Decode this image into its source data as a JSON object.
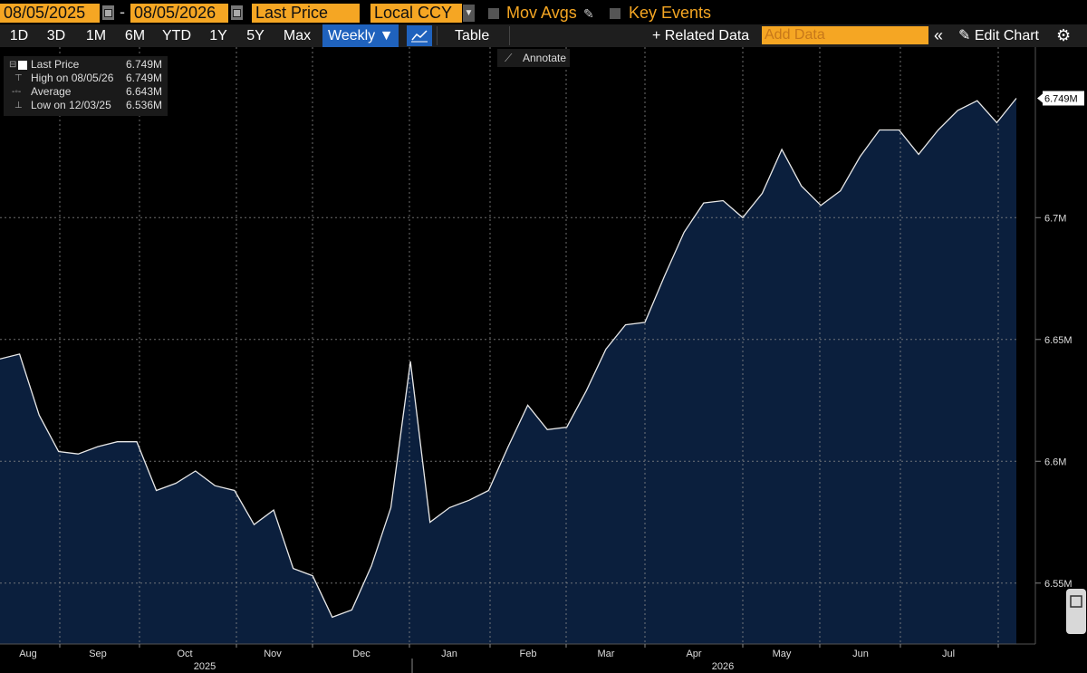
{
  "toolbar": {
    "start_date": "08/05/2025",
    "date_separator": "-",
    "end_date": "08/05/2026",
    "field": "Last Price",
    "currency": "Local CCY",
    "mov_avgs_label": "Mov Avgs",
    "key_events_label": "Key Events",
    "ranges": [
      "1D",
      "3D",
      "1M",
      "6M",
      "YTD",
      "1Y",
      "5Y",
      "Max"
    ],
    "frequency": "Weekly ▼",
    "table_label": "Table",
    "related_data_label": "+ Related Data",
    "add_data_placeholder": "Add Data",
    "collapse_label": "«",
    "edit_chart_label": "Edit Chart",
    "annotate_label": "Annotate"
  },
  "legend": {
    "rows": [
      {
        "label": "Last Price",
        "value": "6.749M"
      },
      {
        "label": "High on 08/05/26",
        "value": "6.749M"
      },
      {
        "label": "Average",
        "value": "6.643M"
      },
      {
        "label": "Low on 12/03/25",
        "value": "6.536M"
      }
    ]
  },
  "colors": {
    "background": "#000000",
    "line": "#e8e8e8",
    "area_fill": "#0b1f3d",
    "accent_orange": "#f5a623",
    "active_blue": "#1f62bd"
  },
  "chart_data": {
    "type": "area",
    "title": "",
    "xlabel": "",
    "ylabel": "",
    "ylim": [
      6.525,
      6.77
    ],
    "y_ticks": [
      6.55,
      6.6,
      6.65,
      6.7
    ],
    "y_tick_labels": [
      "6.55M",
      "6.6M",
      "6.65M",
      "6.7M"
    ],
    "last_value_label": "6.749M",
    "x_month_labels": [
      "Aug",
      "Sep",
      "Oct",
      "Nov",
      "Dec",
      "Jan",
      "Feb",
      "Mar",
      "Apr",
      "May",
      "Jun",
      "Jul"
    ],
    "x_year_labels": [
      "2025",
      "2026"
    ],
    "grid": true,
    "series": [
      {
        "values": [
          6.642,
          6.644,
          6.619,
          6.604,
          6.603,
          6.606,
          6.608,
          6.608,
          6.588,
          6.591,
          6.596,
          6.59,
          6.588,
          6.574,
          6.58,
          6.556,
          6.553,
          6.536,
          6.539,
          6.557,
          6.581,
          6.641,
          6.575,
          6.581,
          6.584,
          6.588,
          6.606,
          6.623,
          6.613,
          6.614,
          6.629,
          6.646,
          6.656,
          6.657,
          6.676,
          6.694,
          6.706,
          6.707,
          6.7,
          6.71,
          6.728,
          6.713,
          6.705,
          6.711,
          6.725,
          6.736,
          6.736,
          6.726,
          6.736,
          6.744,
          6.748,
          6.739,
          6.749
        ]
      }
    ]
  }
}
